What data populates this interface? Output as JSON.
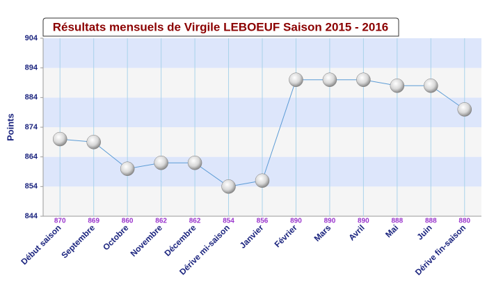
{
  "chart_data": {
    "type": "line",
    "title": "Résultats mensuels de Virgile LEBOEUF Saison 2015 - 2016",
    "y_label": "Points",
    "categories": [
      "Début saison",
      "Septembre",
      "Octobre",
      "Novembre",
      "Décembre",
      "Dérive mi-saison",
      "Janvier",
      "Février",
      "Mars",
      "Avril",
      "Mai",
      "Juin",
      "Dérive fin-saison"
    ],
    "values": [
      870,
      869,
      860,
      862,
      862,
      854,
      856,
      890,
      890,
      890,
      888,
      888,
      880
    ],
    "color": "#5b9bd5",
    "ylim": [
      844,
      904
    ],
    "yticks": [
      844,
      854,
      864,
      874,
      884,
      894,
      904
    ],
    "band_colors": [
      "#f5f5f5",
      "#dde6fb"
    ]
  }
}
